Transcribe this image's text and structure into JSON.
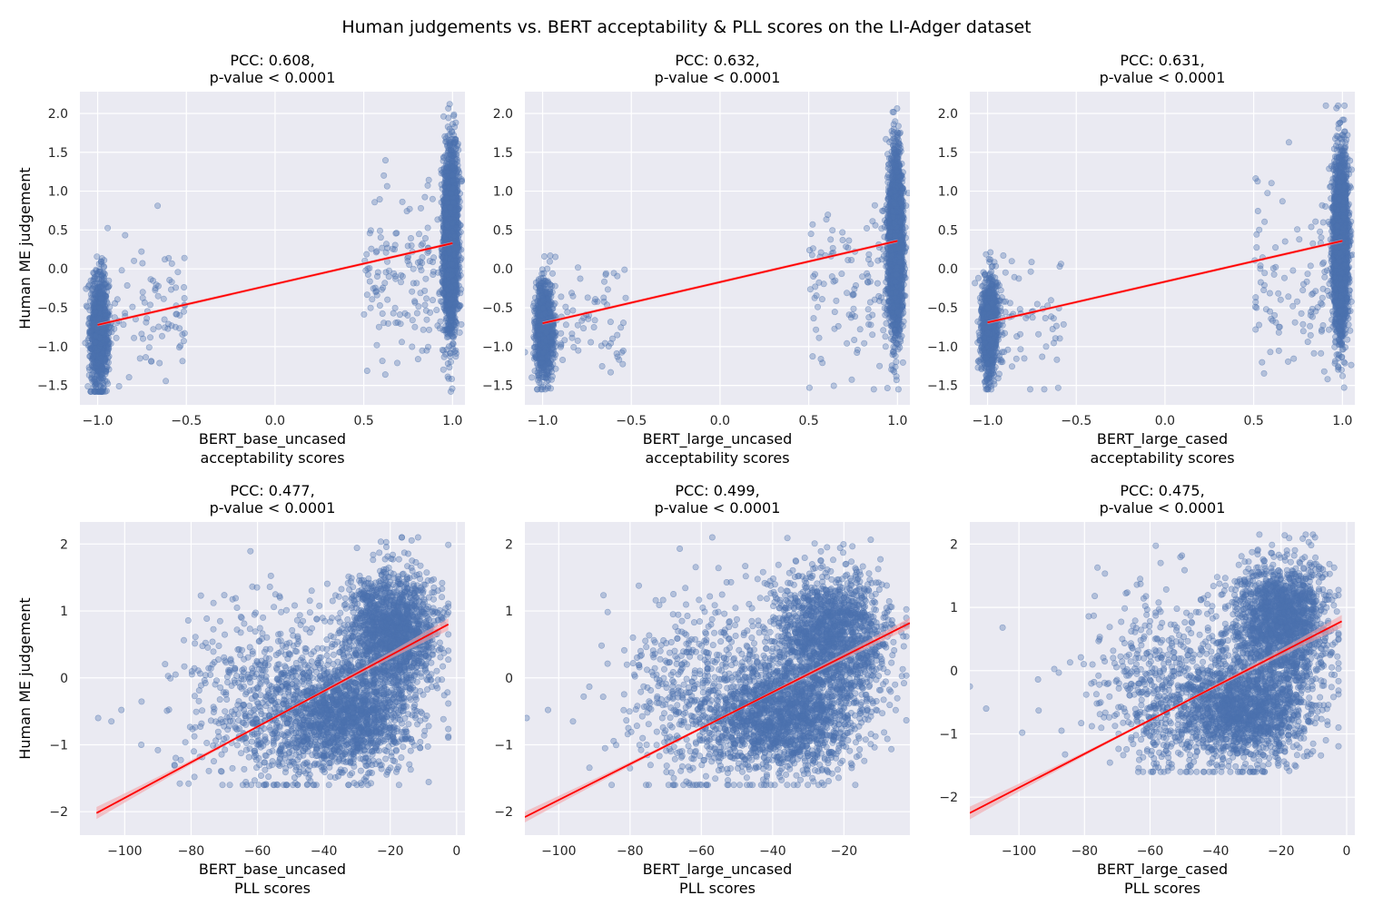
{
  "figure": {
    "title": "Human judgements vs. BERT acceptability & PLL scores on the LI-Adger dataset",
    "background": "#ffffff",
    "axes_background": "#eaeaf2",
    "grid_color": "#ffffff",
    "point_color": "#4c72b0",
    "fit_color": "#ff0000",
    "ci_color": "#f4a3a8"
  },
  "chart_data": [
    {
      "type": "scatter",
      "title": [
        "PCC: 0.608,",
        "p-value < 0.0001"
      ],
      "xlabel": [
        "BERT_base_uncased",
        "acceptability scores"
      ],
      "ylabel": "Human ME judgement",
      "xlim": [
        -1.1,
        1.07
      ],
      "ylim": [
        -1.75,
        2.28
      ],
      "xticks": [
        -1.0,
        -0.5,
        0.0,
        0.5,
        1.0
      ],
      "xtick_labels": [
        "−1.0",
        "−0.5",
        "0.0",
        "0.5",
        "1.0"
      ],
      "yticks": [
        -1.5,
        -1.0,
        -0.5,
        0.0,
        0.5,
        1.0,
        1.5,
        2.0
      ],
      "ytick_labels": [
        "−1.5",
        "−1.0",
        "−0.5",
        "0.0",
        "0.5",
        "1.0",
        "1.5",
        "2.0"
      ],
      "fit": {
        "x": [
          -1.0,
          1.0
        ],
        "y": [
          -0.72,
          0.33
        ],
        "ci": 0.02
      },
      "points": {
        "left_cluster": {
          "x_center": -0.99,
          "x_spread": 0.025,
          "y_mean": -0.8,
          "y_sd": 0.35,
          "count": 1100
        },
        "right_cluster": {
          "x_center": 0.99,
          "x_spread": 0.02,
          "y_mean": 0.35,
          "y_sd": 0.55,
          "count": 2600
        },
        "scatter_low": {
          "x_range": [
            -0.95,
            -0.5
          ],
          "y_mean": -0.5,
          "y_sd": 0.45,
          "count": 90
        },
        "scatter_high": {
          "x_range": [
            0.5,
            0.95
          ],
          "y_mean": -0.1,
          "y_sd": 0.55,
          "count": 150
        }
      },
      "y_extremes": [
        -1.58,
        2.12
      ]
    },
    {
      "type": "scatter",
      "title": [
        "PCC: 0.632,",
        "p-value < 0.0001"
      ],
      "xlabel": [
        "BERT_large_uncased",
        "acceptability scores"
      ],
      "ylabel": "",
      "xlim": [
        -1.1,
        1.07
      ],
      "ylim": [
        -1.75,
        2.28
      ],
      "xticks": [
        -1.0,
        -0.5,
        0.0,
        0.5,
        1.0
      ],
      "xtick_labels": [
        "−1.0",
        "−0.5",
        "0.0",
        "0.5",
        "1.0"
      ],
      "yticks": [
        -1.5,
        -1.0,
        -0.5,
        0.0,
        0.5,
        1.0,
        1.5,
        2.0
      ],
      "ytick_labels": [
        "−1.5",
        "−1.0",
        "−0.5",
        "0.0",
        "0.5",
        "1.0",
        "1.5",
        "2.0"
      ],
      "fit": {
        "x": [
          -1.0,
          1.0
        ],
        "y": [
          -0.7,
          0.36
        ],
        "ci": 0.02
      },
      "points": {
        "left_cluster": {
          "x_center": -0.99,
          "x_spread": 0.025,
          "y_mean": -0.8,
          "y_sd": 0.3,
          "count": 1000
        },
        "right_cluster": {
          "x_center": 0.99,
          "x_spread": 0.02,
          "y_mean": 0.3,
          "y_sd": 0.55,
          "count": 2700
        },
        "scatter_low": {
          "x_range": [
            -0.95,
            -0.5
          ],
          "y_mean": -0.6,
          "y_sd": 0.35,
          "count": 70
        },
        "scatter_high": {
          "x_range": [
            0.5,
            0.95
          ],
          "y_mean": -0.2,
          "y_sd": 0.55,
          "count": 110
        }
      },
      "y_extremes": [
        -1.55,
        2.12
      ]
    },
    {
      "type": "scatter",
      "title": [
        "PCC: 0.631,",
        "p-value < 0.0001"
      ],
      "xlabel": [
        "BERT_large_cased",
        "acceptability scores"
      ],
      "ylabel": "",
      "xlim": [
        -1.1,
        1.07
      ],
      "ylim": [
        -1.75,
        2.28
      ],
      "xticks": [
        -1.0,
        -0.5,
        0.0,
        0.5,
        1.0
      ],
      "xtick_labels": [
        "−1.0",
        "−0.5",
        "0.0",
        "0.5",
        "1.0"
      ],
      "yticks": [
        -1.5,
        -1.0,
        -0.5,
        0.0,
        0.5,
        1.0,
        1.5,
        2.0
      ],
      "ytick_labels": [
        "−1.5",
        "−1.0",
        "−0.5",
        "0.0",
        "0.5",
        "1.0",
        "1.5",
        "2.0"
      ],
      "fit": {
        "x": [
          -1.0,
          1.0
        ],
        "y": [
          -0.69,
          0.36
        ],
        "ci": 0.02
      },
      "points": {
        "left_cluster": {
          "x_center": -0.99,
          "x_spread": 0.025,
          "y_mean": -0.75,
          "y_sd": 0.32,
          "count": 1000
        },
        "right_cluster": {
          "x_center": 0.99,
          "x_spread": 0.02,
          "y_mean": 0.3,
          "y_sd": 0.55,
          "count": 2700
        },
        "scatter_low": {
          "x_range": [
            -0.95,
            -0.55
          ],
          "y_mean": -0.6,
          "y_sd": 0.4,
          "count": 60
        },
        "scatter_high": {
          "x_range": [
            0.5,
            0.95
          ],
          "y_mean": -0.2,
          "y_sd": 0.55,
          "count": 110
        }
      },
      "y_extremes": [
        -1.55,
        2.1
      ]
    },
    {
      "type": "scatter",
      "title": [
        "PCC: 0.477,",
        "p-value < 0.0001"
      ],
      "xlabel": [
        "BERT_base_uncased",
        "PLL scores"
      ],
      "ylabel": "Human ME judgement",
      "xlim": [
        -113.5,
        2.5
      ],
      "ylim": [
        -2.35,
        2.33
      ],
      "xticks": [
        -100,
        -80,
        -60,
        -40,
        -20,
        0
      ],
      "xtick_labels": [
        "−100",
        "−80",
        "−60",
        "−40",
        "−20",
        "0"
      ],
      "yticks": [
        -2,
        -1,
        0,
        1,
        2
      ],
      "ytick_labels": [
        "−2",
        "−1",
        "0",
        "1",
        "2"
      ],
      "fit": {
        "x": [
          -108.5,
          -2.5
        ],
        "y": [
          -2.02,
          0.8
        ],
        "ci_ends": 0.09,
        "ci_mid": 0.02
      },
      "points": {
        "cloud_low": {
          "x_mean": -33,
          "x_sd": 10,
          "y_mean": -0.6,
          "y_sd": 0.4,
          "count": 1500
        },
        "cloud_high": {
          "x_mean": -20,
          "x_sd": 7,
          "y_mean": 0.7,
          "y_sd": 0.45,
          "count": 1700
        },
        "tail": {
          "x_mean": -55,
          "x_sd": 12,
          "y_mean": -0.3,
          "y_sd": 0.7,
          "count": 700
        },
        "outliers": [
          [
            -108,
            -0.6
          ],
          [
            -104,
            -0.65
          ],
          [
            -101,
            -0.48
          ],
          [
            -95,
            -1.0
          ],
          [
            -90,
            -1.08
          ],
          [
            -85,
            -1.3
          ],
          [
            -79,
            -1.48
          ]
        ]
      },
      "y_extremes": [
        -1.6,
        2.1
      ]
    },
    {
      "type": "scatter",
      "title": [
        "PCC: 0.499,",
        "p-value < 0.0001"
      ],
      "xlabel": [
        "BERT_large_uncased",
        "PLL scores"
      ],
      "ylabel": "",
      "xlim": [
        -109.5,
        -1.5
      ],
      "ylim": [
        -2.35,
        2.33
      ],
      "xticks": [
        -100,
        -80,
        -60,
        -40,
        -20
      ],
      "xtick_labels": [
        "−100",
        "−80",
        "−60",
        "−40",
        "−20"
      ],
      "yticks": [
        -2,
        -1,
        0,
        1,
        2
      ],
      "ytick_labels": [
        "−2",
        "−1",
        "0",
        "1",
        "2"
      ],
      "fit": {
        "x": [
          -109.5,
          -1.5
        ],
        "y": [
          -2.08,
          0.82
        ],
        "ci_ends": 0.08,
        "ci_mid": 0.02
      },
      "points": {
        "cloud_low": {
          "x_mean": -36,
          "x_sd": 10,
          "y_mean": -0.6,
          "y_sd": 0.4,
          "count": 1500
        },
        "cloud_high": {
          "x_mean": -24,
          "x_sd": 8,
          "y_mean": 0.6,
          "y_sd": 0.5,
          "count": 1700
        },
        "tail": {
          "x_mean": -58,
          "x_sd": 12,
          "y_mean": -0.3,
          "y_sd": 0.7,
          "count": 700
        },
        "outliers": [
          [
            -109,
            -0.6
          ],
          [
            -103,
            -0.48
          ],
          [
            -96,
            -0.65
          ],
          [
            -93,
            -0.28
          ],
          [
            -87,
            -1.05
          ],
          [
            -80,
            -1.35
          ]
        ]
      },
      "y_extremes": [
        -1.6,
        2.1
      ]
    },
    {
      "type": "scatter",
      "title": [
        "PCC: 0.475,",
        "p-value < 0.0001"
      ],
      "xlabel": [
        "BERT_large_cased",
        "PLL scores"
      ],
      "ylabel": "",
      "xlim": [
        -115,
        2.5
      ],
      "ylim": [
        -2.6,
        2.35
      ],
      "xticks": [
        -100,
        -80,
        -60,
        -40,
        -20,
        0
      ],
      "xtick_labels": [
        "−100",
        "−80",
        "−60",
        "−40",
        "−20",
        "0"
      ],
      "yticks": [
        -2,
        -1,
        0,
        1,
        2
      ],
      "ytick_labels": [
        "−2",
        "−1",
        "0",
        "1",
        "2"
      ],
      "fit": {
        "x": [
          -115,
          -1.5
        ],
        "y": [
          -2.25,
          0.78
        ],
        "ci_ends": 0.1,
        "ci_mid": 0.02
      },
      "points": {
        "cloud_low": {
          "x_mean": -30,
          "x_sd": 10,
          "y_mean": -0.6,
          "y_sd": 0.4,
          "count": 1500
        },
        "cloud_high": {
          "x_mean": -20,
          "x_sd": 7,
          "y_mean": 0.8,
          "y_sd": 0.45,
          "count": 1700
        },
        "tail": {
          "x_mean": -52,
          "x_sd": 12,
          "y_mean": -0.3,
          "y_sd": 0.7,
          "count": 700
        },
        "outliers": [
          [
            -115,
            -0.25
          ],
          [
            -110,
            -0.6
          ],
          [
            -105,
            0.68
          ],
          [
            -99,
            -0.98
          ],
          [
            -94,
            -0.63
          ],
          [
            -87,
            -0.95
          ],
          [
            -81,
            -0.83
          ]
        ]
      },
      "y_extremes": [
        -1.6,
        2.15
      ]
    }
  ]
}
